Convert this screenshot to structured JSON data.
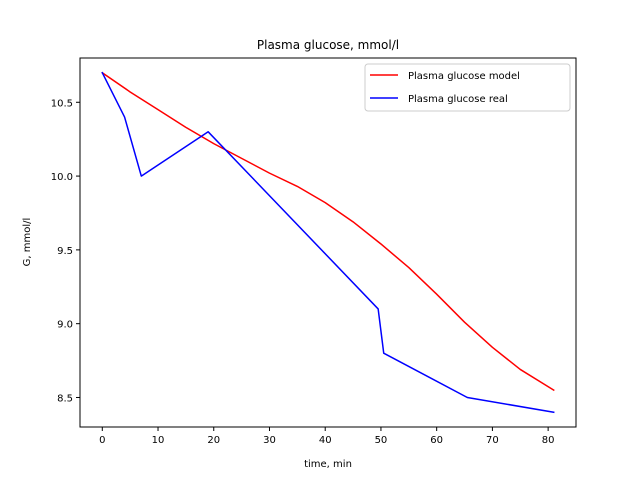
{
  "chart_data": {
    "type": "line",
    "title": "Plasma glucose, mmol/l",
    "xlabel": "time, min",
    "ylabel": "G, mmol/l",
    "xlim": [
      -4,
      85
    ],
    "ylim": [
      8.3,
      10.8
    ],
    "xticks": [
      0,
      10,
      20,
      30,
      40,
      50,
      60,
      70,
      80
    ],
    "yticks": [
      8.5,
      9.0,
      9.5,
      10.0,
      10.5
    ],
    "xtick_labels": [
      "0",
      "10",
      "20",
      "30",
      "40",
      "50",
      "60",
      "70",
      "80"
    ],
    "ytick_labels": [
      "8.5",
      "9.0",
      "9.5",
      "10.0",
      "10.5"
    ],
    "legend_position": "top-right",
    "grid": false,
    "series": [
      {
        "name": "Plasma glucose model",
        "color": "#ff0000",
        "x": [
          0,
          5,
          10,
          15,
          20,
          25,
          30,
          35,
          40,
          45,
          50,
          55,
          60,
          65,
          70,
          75,
          81
        ],
        "y": [
          10.7,
          10.57,
          10.45,
          10.33,
          10.22,
          10.12,
          10.02,
          9.93,
          9.82,
          9.69,
          9.54,
          9.38,
          9.2,
          9.01,
          8.84,
          8.69,
          8.55
        ]
      },
      {
        "name": "Plasma glucose real",
        "color": "#0000ff",
        "x": [
          0,
          4,
          7,
          19,
          49.5,
          50.5,
          65.5,
          81
        ],
        "y": [
          10.7,
          10.4,
          10.0,
          10.3,
          9.1,
          8.8,
          8.5,
          8.4
        ]
      }
    ]
  }
}
